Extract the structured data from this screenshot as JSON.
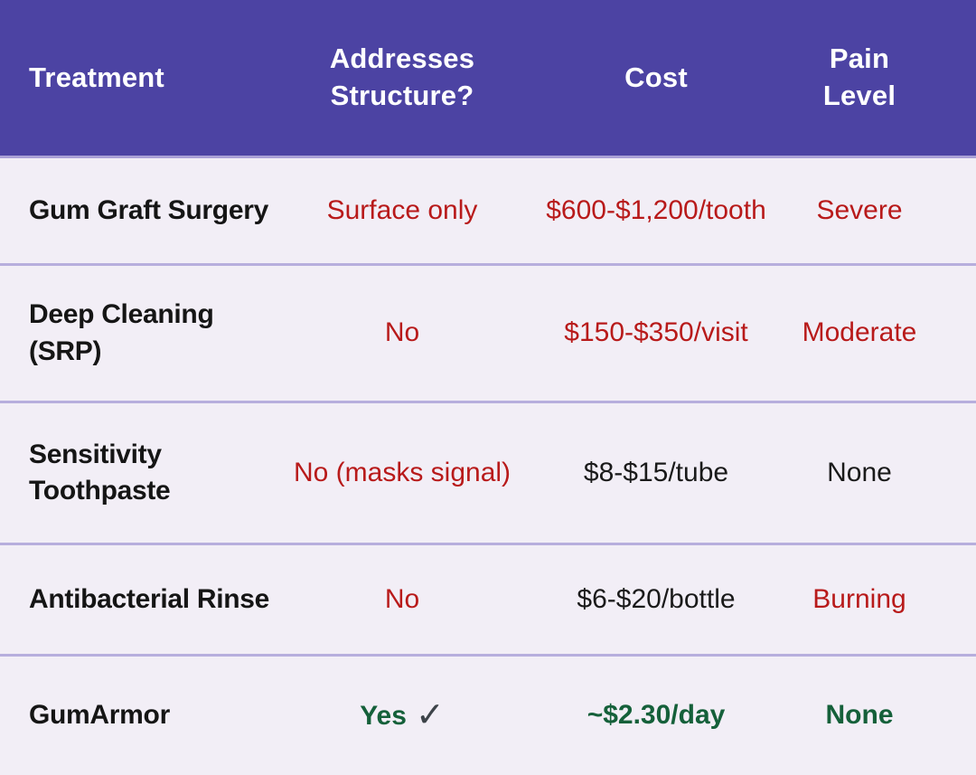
{
  "colors": {
    "header_background": "#4c43a3",
    "header_text": "#ffffff",
    "row_background": "#f2eef6",
    "divider": "#b7aedd",
    "negative_text": "#b81a1a",
    "neutral_text": "#1a1a1a",
    "positive_text": "#15603a",
    "checkmark": "#3d4349"
  },
  "icons": {
    "check": "✓"
  },
  "table": {
    "columns": [
      {
        "label": "Treatment"
      },
      {
        "label": "Addresses\nStructure?"
      },
      {
        "label": "Cost"
      },
      {
        "label": "Pain\nLevel"
      }
    ],
    "rows": [
      {
        "treatment": "Gum Graft Surgery",
        "structure": "Surface only",
        "cost": "$600-$1,200/tooth",
        "pain": "Severe",
        "tones": {
          "structure": "bad",
          "cost": "bad",
          "pain": "bad"
        }
      },
      {
        "treatment": "Deep Cleaning\n(SRP)",
        "structure": "No",
        "cost": "$150-$350/visit",
        "pain": "Moderate",
        "tones": {
          "structure": "bad",
          "cost": "bad",
          "pain": "bad"
        }
      },
      {
        "treatment": "Sensitivity\nToothpaste",
        "structure": "No (masks signal)",
        "cost": "$8-$15/tube",
        "pain": "None",
        "tones": {
          "structure": "bad",
          "cost": "neutral",
          "pain": "neutral"
        }
      },
      {
        "treatment": "Antibacterial Rinse",
        "structure": "No",
        "cost": "$6-$20/bottle",
        "pain": "Burning",
        "tones": {
          "structure": "bad",
          "cost": "neutral",
          "pain": "bad"
        }
      },
      {
        "treatment": "GumArmor",
        "structure": "Yes",
        "cost": "~$2.30/day",
        "pain": "None",
        "tones": {
          "structure": "good",
          "cost": "good",
          "pain": "good"
        }
      }
    ]
  },
  "chart_data": {
    "type": "table",
    "title": "",
    "columns": [
      "Treatment",
      "Addresses Structure?",
      "Cost",
      "Pain Level"
    ],
    "rows": [
      [
        "Gum Graft Surgery",
        "Surface only",
        "$600-$1,200/tooth",
        "Severe"
      ],
      [
        "Deep Cleaning (SRP)",
        "No",
        "$150-$350/visit",
        "Moderate"
      ],
      [
        "Sensitivity Toothpaste",
        "No (masks signal)",
        "$8-$15/tube",
        "None"
      ],
      [
        "Antibacterial Rinse",
        "No",
        "$6-$20/bottle",
        "Burning"
      ],
      [
        "GumArmor",
        "Yes ✓",
        "~$2.30/day",
        "None"
      ]
    ]
  }
}
